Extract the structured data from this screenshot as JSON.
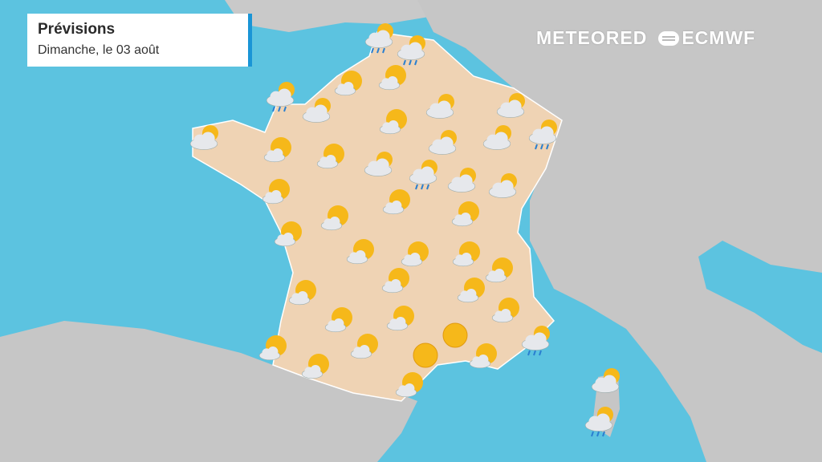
{
  "header": {
    "title": "Prévisions",
    "subtitle": "Dimanche, le 03 août"
  },
  "logos": {
    "brand": "METEORED",
    "partner": "ECMWF"
  },
  "colors": {
    "sea": "#5cc3e0",
    "land": "#c8c8c8",
    "france": "#efd3b4",
    "accent": "#1a95d6",
    "sun": "#f6b81a",
    "cloud": "#e6e8ec",
    "rain": "#2a7fd0"
  },
  "forecast_icons": [
    "rain",
    "rain",
    "rain",
    "sun-cloud",
    "sun-cloud",
    "cloud-sun",
    "cloud-sun",
    "cloud-sun",
    "cloud-sun",
    "sun-cloud",
    "cloud-sun",
    "cloud-sun",
    "rain",
    "sun-cloud",
    "sun-cloud",
    "cloud-sun",
    "rain",
    "cloud-sun",
    "cloud-sun",
    "sun-cloud",
    "sun-cloud",
    "sun-cloud",
    "sun-cloud",
    "sun-cloud",
    "sun-cloud",
    "sun-cloud",
    "sun-cloud",
    "sun-cloud",
    "sun-cloud",
    "sun-cloud",
    "sun-cloud",
    "sun-cloud",
    "sun-cloud",
    "sun-cloud",
    "sun",
    "rain",
    "sun-cloud",
    "sun-cloud",
    "sun",
    "sun-cloud",
    "sun-cloud",
    "sun-cloud",
    "cloud-sun",
    "rain"
  ]
}
